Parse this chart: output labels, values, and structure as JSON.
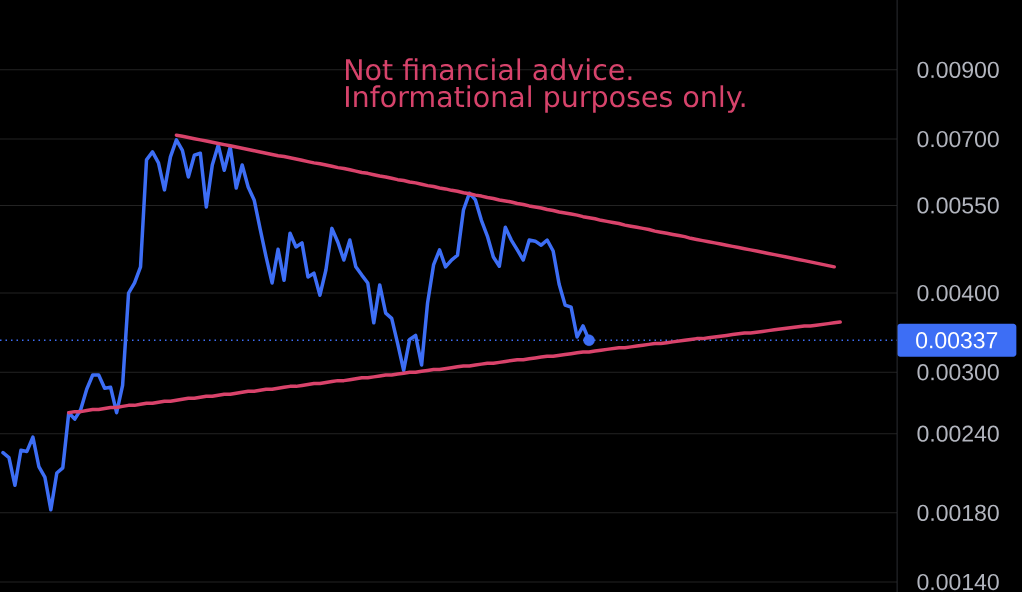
{
  "chart_data": {
    "type": "line",
    "annotations": [
      "Not financial advice.",
      "Informational purposes only."
    ],
    "log": "y",
    "grid": "y",
    "categories": [
      null,
      null,
      null,
      null,
      null,
      null,
      null,
      null,
      null,
      null,
      null,
      null,
      null,
      null,
      null,
      null,
      null,
      null,
      null,
      null,
      null,
      null,
      null,
      null,
      null,
      null,
      null,
      null,
      null,
      null,
      null,
      null,
      null,
      null,
      null,
      null,
      null,
      null,
      null,
      null,
      null,
      null,
      null,
      null,
      null,
      null,
      null,
      null,
      null,
      null,
      null,
      null,
      null,
      null,
      null,
      null,
      null,
      null,
      null,
      null,
      null,
      null,
      null,
      null,
      null,
      null,
      null,
      null,
      null,
      null,
      null,
      null,
      null,
      null,
      null,
      null,
      null,
      null,
      null,
      null,
      null,
      null,
      null,
      null,
      null,
      null,
      null,
      null,
      null,
      null,
      null,
      null,
      null,
      null,
      null,
      null,
      null,
      null,
      null,
      null,
      null,
      null,
      null,
      null,
      null,
      null,
      null,
      null,
      null,
      null,
      null,
      null,
      null,
      null,
      null,
      null,
      null,
      null,
      null,
      null,
      null,
      null,
      null,
      null,
      null,
      null,
      null,
      null,
      null,
      null,
      null,
      null,
      null,
      null,
      null,
      null,
      null,
      null,
      null,
      null,
      null,
      null,
      null,
      null,
      null,
      null,
      null,
      null,
      null,
      null
    ],
    "ylim": [
      0.00135,
      0.0116
    ],
    "yticks": [
      {
        "value": 0.0014,
        "label": "0.00140"
      },
      {
        "value": 0.0018,
        "label": "0.00180"
      },
      {
        "value": 0.0024,
        "label": "0.00240"
      },
      {
        "value": 0.003,
        "label": "0.00300"
      },
      {
        "value": 0.004,
        "label": "0.00400"
      },
      {
        "value": 0.0055,
        "label": "0.00550"
      },
      {
        "value": 0.007,
        "label": "0.00700"
      },
      {
        "value": 0.009,
        "label": "0.00900"
      }
    ],
    "ref_lines": [
      {
        "axis": "y",
        "value": 0.00337,
        "label": "0.00337",
        "color": "#3d6ef5",
        "line_style": "dotted"
      }
    ],
    "series": [
      {
        "color": "#3d6ef5",
        "values": [
          0.00224,
          0.0022,
          0.00199,
          0.00226,
          0.00225,
          0.00237,
          0.00213,
          0.00205,
          0.00182,
          0.00208,
          0.00212,
          0.00259,
          0.00253,
          0.00262,
          0.00282,
          0.00297,
          0.00297,
          0.00283,
          0.00284,
          0.00259,
          0.00286,
          0.004,
          0.00415,
          0.0044,
          0.00649,
          0.00668,
          0.00642,
          0.00582,
          0.00656,
          0.00698,
          0.00672,
          0.0061,
          0.0066,
          0.00665,
          0.00547,
          0.00637,
          0.00685,
          0.00625,
          0.0068,
          0.00586,
          0.00637,
          0.00588,
          0.00561,
          0.00505,
          0.00456,
          0.00415,
          0.00469,
          0.00419,
          0.00497,
          0.00473,
          0.0048,
          0.00424,
          0.0043,
          0.00397,
          0.00435,
          0.00506,
          0.00481,
          0.00451,
          0.00485,
          0.0044,
          0.00427,
          0.00415,
          0.00359,
          0.00412,
          0.00372,
          0.00365,
          0.00333,
          0.00302,
          0.00338,
          0.00343,
          0.00308,
          0.00386,
          0.00443,
          0.00468,
          0.0044,
          0.00451,
          0.00459,
          0.00541,
          0.00575,
          0.00561,
          0.00521,
          0.00492,
          0.00456,
          0.00441,
          0.00508,
          0.00485,
          0.00468,
          0.00451,
          0.00485,
          0.00483,
          0.00476,
          0.00485,
          0.00466,
          0.00413,
          0.00383,
          0.0038,
          0.00341,
          0.00355,
          0.00337,
          null,
          null,
          null,
          null,
          null,
          null,
          null,
          null,
          null,
          null,
          null,
          null,
          null,
          null,
          null,
          null,
          null,
          null,
          null,
          null,
          null,
          null,
          null,
          null,
          null,
          null,
          null,
          null,
          null,
          null,
          null,
          null,
          null,
          null,
          null,
          null,
          null,
          null,
          null,
          null,
          null,
          null,
          null,
          null,
          null,
          null,
          null,
          null,
          null,
          null,
          null
        ]
      },
      {
        "type": "line",
        "color": "#d9436b",
        "values": [
          null,
          null,
          null,
          null,
          null,
          null,
          null,
          null,
          null,
          null,
          null,
          null,
          null,
          null,
          null,
          null,
          null,
          null,
          null,
          null,
          null,
          null,
          null,
          null,
          null,
          null,
          null,
          null,
          null,
          0.0071,
          0.00707,
          0.00704,
          0.00701,
          0.00698,
          0.00695,
          0.00692,
          0.00689,
          0.00686,
          0.00683,
          0.0068,
          0.00677,
          0.00674,
          0.00671,
          0.00668,
          0.00665,
          0.00662,
          0.00659,
          0.00657,
          0.00654,
          0.00651,
          0.00648,
          0.00645,
          0.00642,
          0.0064,
          0.00637,
          0.00634,
          0.00631,
          0.00629,
          0.00626,
          0.00623,
          0.0062,
          0.00618,
          0.00615,
          0.00612,
          0.0061,
          0.00607,
          0.00604,
          0.00602,
          0.00599,
          0.00597,
          0.00594,
          0.00591,
          0.00589,
          0.00586,
          0.00584,
          0.00581,
          0.00579,
          0.00576,
          0.00574,
          0.00571,
          0.00569,
          0.00566,
          0.00564,
          0.00561,
          0.00559,
          0.00557,
          0.00554,
          0.00552,
          0.00549,
          0.00547,
          0.00545,
          0.00542,
          0.0054,
          0.00537,
          0.00535,
          0.00533,
          0.00531,
          0.00528,
          0.00526,
          0.00524,
          0.00521,
          0.00519,
          0.00517,
          0.00515,
          0.00512,
          0.0051,
          0.00508,
          0.00506,
          0.00504,
          0.00501,
          0.00499,
          0.00497,
          0.00495,
          0.00493,
          0.00491,
          0.00488,
          0.00486,
          0.00484,
          0.00482,
          0.0048,
          0.00478,
          0.00476,
          0.00474,
          0.00472,
          0.0047,
          0.00468,
          0.00466,
          0.00464,
          0.00462,
          0.0046,
          0.00458,
          0.00456,
          0.00454,
          0.00452,
          0.0045,
          0.00448,
          0.00446,
          0.00444,
          0.00442,
          0.0044,
          null,
          null,
          null,
          null,
          null,
          null,
          null,
          null,
          null,
          null
        ]
      },
      {
        "type": "line",
        "color": "#d9436b",
        "values": [
          null,
          null,
          null,
          null,
          null,
          null,
          null,
          null,
          null,
          null,
          null,
          0.00259,
          0.0026,
          0.0026,
          0.00261,
          0.00262,
          0.00262,
          0.00263,
          0.00264,
          0.00264,
          0.00265,
          0.00266,
          0.00266,
          0.00267,
          0.00268,
          0.00268,
          0.00269,
          0.0027,
          0.0027,
          0.00271,
          0.00272,
          0.00273,
          0.00273,
          0.00274,
          0.00275,
          0.00275,
          0.00276,
          0.00277,
          0.00277,
          0.00278,
          0.00279,
          0.0028,
          0.0028,
          0.00281,
          0.00282,
          0.00282,
          0.00283,
          0.00284,
          0.00285,
          0.00285,
          0.00286,
          0.00287,
          0.00288,
          0.00288,
          0.00289,
          0.0029,
          0.00291,
          0.00291,
          0.00292,
          0.00293,
          0.00294,
          0.00294,
          0.00295,
          0.00296,
          0.00297,
          0.00297,
          0.00298,
          0.00299,
          0.003,
          0.003,
          0.00301,
          0.00302,
          0.00303,
          0.00303,
          0.00304,
          0.00305,
          0.00306,
          0.00307,
          0.00307,
          0.00308,
          0.00309,
          0.0031,
          0.0031,
          0.00311,
          0.00312,
          0.00313,
          0.00314,
          0.00314,
          0.00315,
          0.00316,
          0.00317,
          0.00318,
          0.00318,
          0.00319,
          0.0032,
          0.00321,
          0.00322,
          0.00323,
          0.00323,
          0.00324,
          0.00325,
          0.00326,
          0.00327,
          0.00328,
          0.00328,
          0.00329,
          0.0033,
          0.00331,
          0.00332,
          0.00333,
          0.00333,
          0.00334,
          0.00335,
          0.00336,
          0.00337,
          0.00338,
          0.00339,
          0.00339,
          0.0034,
          0.00341,
          0.00342,
          0.00343,
          0.00344,
          0.00345,
          0.00346,
          0.00346,
          0.00347,
          0.00348,
          0.00349,
          0.0035,
          0.00351,
          0.00352,
          0.00353,
          0.00354,
          0.00355,
          0.00355,
          0.00356,
          0.00357,
          0.00358,
          0.00359,
          0.0036,
          null,
          null,
          null,
          null,
          null,
          null,
          null,
          null,
          null
        ]
      },
      {
        "type": "scatter",
        "color": "#3d6ef5",
        "marker": "circle",
        "values": [
          null,
          null,
          null,
          null,
          null,
          null,
          null,
          null,
          null,
          null,
          null,
          null,
          null,
          null,
          null,
          null,
          null,
          null,
          null,
          null,
          null,
          null,
          null,
          null,
          null,
          null,
          null,
          null,
          null,
          null,
          null,
          null,
          null,
          null,
          null,
          null,
          null,
          null,
          null,
          null,
          null,
          null,
          null,
          null,
          null,
          null,
          null,
          null,
          null,
          null,
          null,
          null,
          null,
          null,
          null,
          null,
          null,
          null,
          null,
          null,
          null,
          null,
          null,
          null,
          null,
          null,
          null,
          null,
          null,
          null,
          null,
          null,
          null,
          null,
          null,
          null,
          null,
          null,
          null,
          null,
          null,
          null,
          null,
          null,
          null,
          null,
          null,
          null,
          null,
          null,
          null,
          null,
          null,
          null,
          null,
          null,
          null,
          null,
          0.00337,
          null,
          null,
          null,
          null,
          null,
          null,
          null,
          null,
          null,
          null,
          null,
          null,
          null,
          null,
          null,
          null,
          null,
          null,
          null,
          null,
          null,
          null,
          null,
          null,
          null,
          null,
          null,
          null,
          null,
          null,
          null,
          null,
          null,
          null,
          null,
          null,
          null,
          null,
          null,
          null,
          null,
          null,
          null,
          null,
          null,
          null,
          null,
          null,
          null,
          null,
          null
        ]
      }
    ]
  }
}
